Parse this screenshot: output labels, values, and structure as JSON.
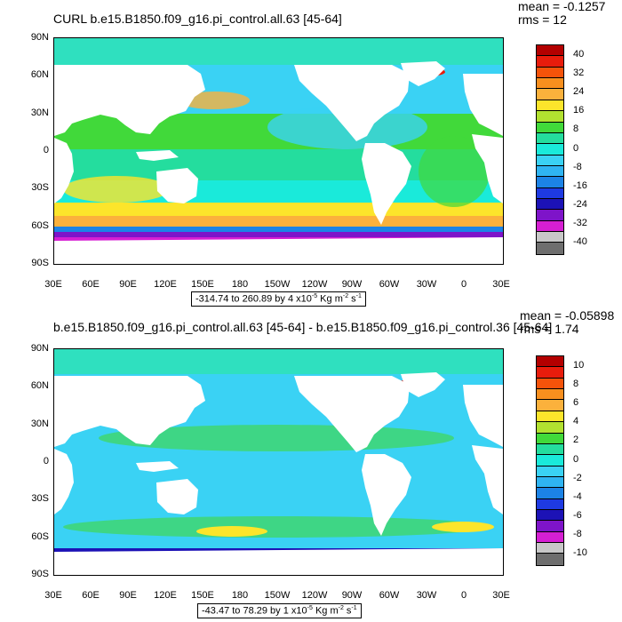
{
  "chart_data": [
    {
      "type": "heatmap",
      "title": "CURL b.e15.B1850.f09_g16.pi_control.all.63 [45-64]",
      "mean_label": "mean = -0.1257",
      "rms_label": "rms = 12",
      "y_ticks": [
        "90N",
        "60N",
        "30N",
        "0",
        "30S",
        "60S",
        "90S"
      ],
      "x_ticks": [
        "30E",
        "60E",
        "90E",
        "120E",
        "150E",
        "180",
        "150W",
        "120W",
        "90W",
        "60W",
        "30W",
        "0",
        "30E"
      ],
      "range_prefix": "-314.74 to 260.89 by 4 x10",
      "range_exp1": "-5",
      "range_unit": " Kg m",
      "range_exp2": "-2",
      "range_suffix": " s",
      "range_exp3": "-1",
      "colorbar_labels": [
        "40",
        "32",
        "24",
        "16",
        "8",
        "0",
        "-8",
        "-16",
        "-24",
        "-32",
        "-40"
      ],
      "colorbar_colors": [
        "#b30000",
        "#e81c0c",
        "#f5530a",
        "#f88f1e",
        "#fbb13c",
        "#fce52b",
        "#b2e130",
        "#41d93a",
        "#24dd9e",
        "#1aeada",
        "#3ad2f4",
        "#2fb4f2",
        "#1c83e6",
        "#1e3ae2",
        "#1c12b6",
        "#7e14c9",
        "#d61fd3",
        "#c8c8c8",
        "#6e6e6e"
      ],
      "ylim": [
        "90S",
        "90N"
      ],
      "xlim": [
        "30E",
        "30E"
      ]
    },
    {
      "type": "heatmap",
      "title": "b.e15.B1850.f09_g16.pi_control.all.63 [45-64] - b.e15.B1850.f09_g16.pi_control.36 [45-64]",
      "mean_label": "mean = -0.05898",
      "rms_label": "rms = 1.74",
      "y_ticks": [
        "90N",
        "60N",
        "30N",
        "0",
        "30S",
        "60S",
        "90S"
      ],
      "x_ticks": [
        "30E",
        "60E",
        "90E",
        "120E",
        "150E",
        "180",
        "150W",
        "120W",
        "90W",
        "60W",
        "30W",
        "0",
        "30E"
      ],
      "range_prefix": "-43.47 to 78.29 by 1 x10",
      "range_exp1": "-5",
      "range_unit": " Kg m",
      "range_exp2": "-2",
      "range_suffix": " s",
      "range_exp3": "-1",
      "colorbar_labels": [
        "10",
        "8",
        "6",
        "4",
        "2",
        "0",
        "-2",
        "-4",
        "-6",
        "-8",
        "-10"
      ],
      "colorbar_colors": [
        "#b30000",
        "#e81c0c",
        "#f5530a",
        "#f88f1e",
        "#fbb13c",
        "#fce52b",
        "#b2e130",
        "#41d93a",
        "#24dd9e",
        "#1aeada",
        "#3ad2f4",
        "#2fb4f2",
        "#1c83e6",
        "#1e3ae2",
        "#1c12b6",
        "#7e14c9",
        "#d61fd3",
        "#c8c8c8",
        "#6e6e6e"
      ],
      "ylim": [
        "90S",
        "90N"
      ],
      "xlim": [
        "30E",
        "30E"
      ]
    }
  ]
}
